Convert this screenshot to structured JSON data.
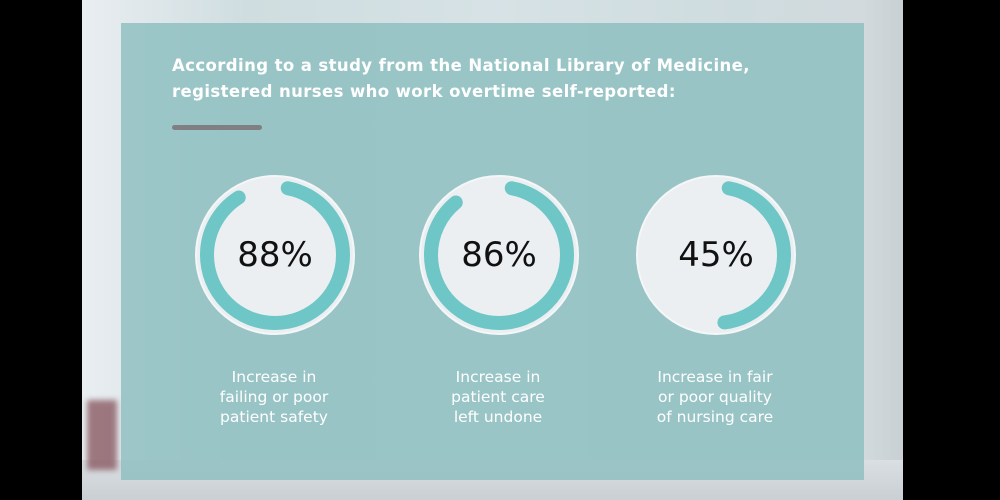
{
  "heading": {
    "line1": "According to a study from the National Library of Medicine,",
    "line2": "registered nurses who work overtime self-reported:"
  },
  "colors": {
    "panel": "#8cbec0",
    "ring": "#6ec6c6",
    "circle_fill": "#ebeff2",
    "rule": "#7f7f84",
    "text": "#ffffff"
  },
  "stats": [
    {
      "value": "88%",
      "percent": 88,
      "label_lines": [
        "Increase in",
        "failing or poor",
        "patient safety"
      ]
    },
    {
      "value": "86%",
      "percent": 86,
      "label_lines": [
        "Increase in",
        "patient care",
        "left undone"
      ]
    },
    {
      "value": "45%",
      "percent": 45,
      "label_lines": [
        "Increase in fair",
        "or poor quality",
        "of nursing care"
      ]
    }
  ],
  "chart_data": {
    "type": "pie",
    "title": "According to a study from the National Library of Medicine, registered nurses who work overtime self-reported:",
    "categories": [
      "Increase in failing or poor patient safety",
      "Increase in patient care left undone",
      "Increase in fair or poor quality of nursing care"
    ],
    "values": [
      88,
      86,
      45
    ],
    "unit": "%",
    "style": "progress rings (donut)"
  }
}
